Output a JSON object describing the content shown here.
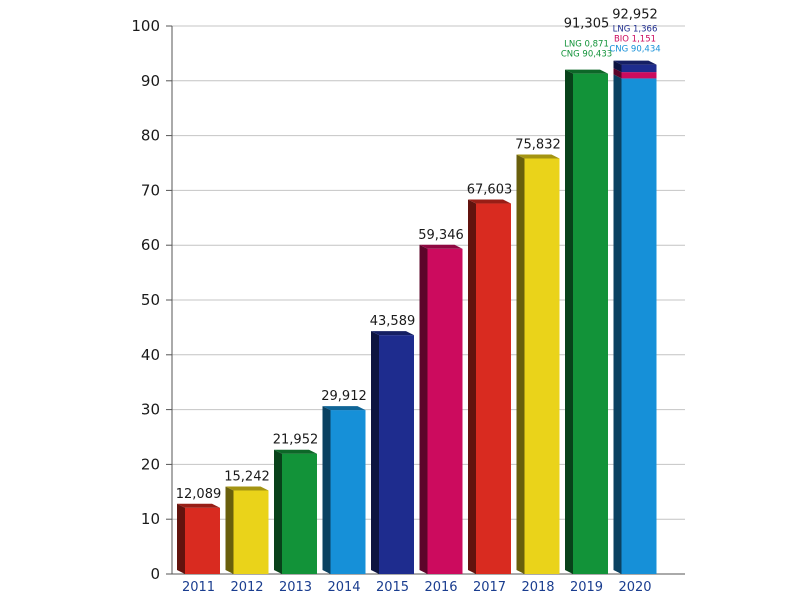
{
  "chart_data": {
    "type": "bar",
    "title": "",
    "xlabel": "",
    "ylabel": "",
    "ylim": [
      0,
      100
    ],
    "yticks": [
      "0",
      "10",
      "20",
      "30",
      "40",
      "50",
      "60",
      "70",
      "80",
      "90",
      "100"
    ],
    "grid": "horizontal",
    "categories": [
      "2011",
      "2012",
      "2013",
      "2014",
      "2015",
      "2016",
      "2017",
      "2018",
      "2019",
      "2020"
    ],
    "values": [
      12.089,
      15.242,
      21.952,
      29.912,
      43.589,
      59.346,
      67.603,
      75.832,
      91.305,
      92.952
    ],
    "value_labels": [
      "12,089",
      "15,242",
      "21,952",
      "29,912",
      "43,589",
      "59,346",
      "67,603",
      "75,832",
      "91,305",
      "92,952"
    ],
    "bar_colors": [
      "#d92b20",
      "#ead31a",
      "#129339",
      "#1690d8",
      "#1e2c8e",
      "#cc0b5e",
      "#d92b20",
      "#ead31a",
      "#129339",
      "#1690d8"
    ],
    "stack_breakdowns": [
      {
        "category": "2019",
        "segments": [
          {
            "name": "LNG",
            "value": 0.871,
            "label": "LNG 0,871",
            "color": "#129339"
          },
          {
            "name": "CNG",
            "value": 90.433,
            "label": "CNG 90,433",
            "color": "#129339"
          }
        ]
      },
      {
        "category": "2020",
        "segments": [
          {
            "name": "CNG",
            "value": 90.434,
            "label": "CNG 90,434",
            "color": "#1690d8"
          },
          {
            "name": "BIO",
            "value": 1.151,
            "label": "BIO 1,151",
            "color": "#cc0b5e"
          },
          {
            "name": "LNG",
            "value": 1.366,
            "label": "LNG 1,366",
            "color": "#1e2c8e"
          }
        ]
      }
    ],
    "colors": {
      "grid": "#c4c4c4",
      "axis": "#555555",
      "xtick_text": "#1a3d8f"
    }
  }
}
